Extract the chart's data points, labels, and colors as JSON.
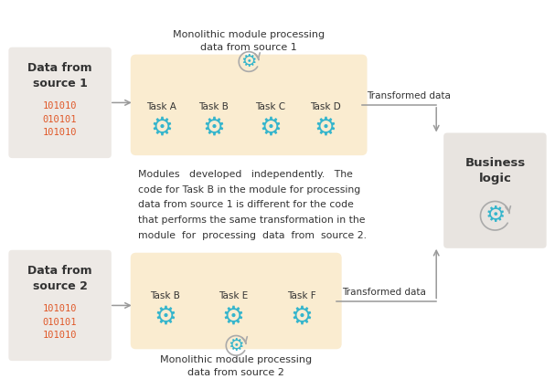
{
  "bg_color": "#ffffff",
  "source_box_color": "#ede9e5",
  "module_box_color": "#faecd0",
  "business_box_color": "#e8e4e0",
  "arrow_color": "#999999",
  "text_color": "#333333",
  "binary_color": "#e05828",
  "gear_color": "#35b5cc",
  "gear_circle_color": "#aaaaaa",
  "source1_label": "Data from\nsource 1",
  "source1_binary": "101010\n010101\n101010",
  "source2_label": "Data from\nsource 2",
  "source2_binary": "101010\n010101\n101010",
  "module1_title_line1": "Monolithic module processing",
  "module1_title_line2": "data from source 1",
  "module1_tasks": [
    "Task A",
    "Task B",
    "Task C",
    "Task D"
  ],
  "module2_title_line1": "Monolithic module processing",
  "module2_title_line2": "data from source 2",
  "module2_tasks": [
    "Task B",
    "Task E",
    "Task F"
  ],
  "business_label": "Business\nlogic",
  "transformed_data_label": "Transformed data",
  "middle_text_line1": "Modules   developed   independently.   The",
  "middle_text_line2": "code for Task B in the module for processing",
  "middle_text_line3": "data from source 1 is different for the code",
  "middle_text_line4": "that performs the same transformation in the",
  "middle_text_line5": "module  for  processing  data  from  source 2.",
  "fig_width": 6.07,
  "fig_height": 4.15,
  "dpi": 100
}
